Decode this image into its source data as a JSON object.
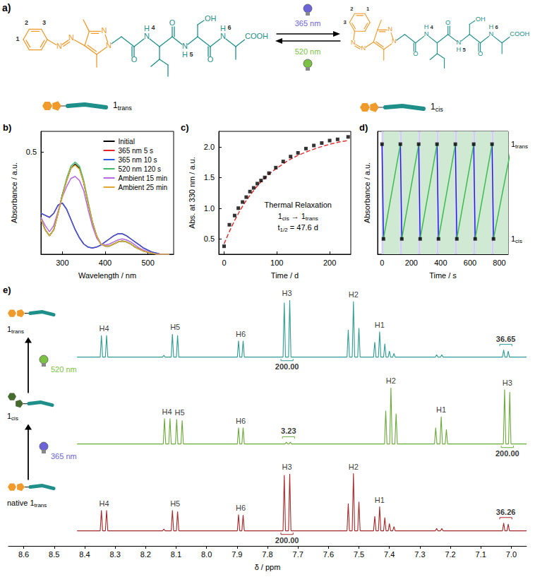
{
  "scheme": {
    "panel": "a)",
    "names": [
      "1trans",
      "1cis"
    ],
    "atoms": [
      "N",
      "N",
      "N",
      "N",
      "O",
      "N",
      "H",
      "O",
      "N",
      "H",
      "OH",
      "O",
      "N",
      "H",
      "COOH"
    ],
    "locants": [
      "1",
      "2",
      "3",
      "4",
      "5",
      "6"
    ],
    "light": [
      {
        "text": "365 nm",
        "color": "#6c63d8"
      },
      {
        "text": "520 nm",
        "color": "#7cc242"
      }
    ]
  },
  "chart_data": [
    {
      "type": "line",
      "panel": "b)",
      "x_label": "Wavelength / nm",
      "y_label": "Absorbance / a.u.",
      "xlim": [
        250,
        560
      ],
      "xticks": [
        300,
        400,
        500
      ],
      "ylim": [
        0,
        0.6
      ],
      "yticks": [
        0.5
      ],
      "legend": "upper right",
      "x": [
        250,
        260,
        270,
        280,
        290,
        300,
        310,
        320,
        330,
        340,
        350,
        360,
        370,
        380,
        390,
        400,
        410,
        420,
        430,
        440,
        450,
        460,
        470,
        480,
        490,
        500,
        510,
        520,
        530,
        540,
        550
      ],
      "series": [
        {
          "name": "Initial",
          "color": "#000000",
          "values": [
            0.17,
            0.12,
            0.09,
            0.12,
            0.2,
            0.29,
            0.36,
            0.42,
            0.44,
            0.42,
            0.35,
            0.25,
            0.16,
            0.09,
            0.05,
            0.04,
            0.04,
            0.05,
            0.06,
            0.065,
            0.06,
            0.05,
            0.035,
            0.025,
            0.015,
            0.01,
            0.005,
            0,
            0,
            0,
            0
          ]
        },
        {
          "name": "365 nm 5 s",
          "color": "#e8222a",
          "values": [
            0.2,
            0.19,
            0.18,
            0.2,
            0.24,
            0.25,
            0.22,
            0.17,
            0.12,
            0.08,
            0.05,
            0.035,
            0.03,
            0.035,
            0.045,
            0.06,
            0.075,
            0.09,
            0.1,
            0.1,
            0.09,
            0.075,
            0.06,
            0.045,
            0.03,
            0.02,
            0.01,
            0.005,
            0,
            0,
            0
          ]
        },
        {
          "name": "365 nm 10 s",
          "color": "#2f5be0",
          "values": [
            0.2,
            0.19,
            0.18,
            0.2,
            0.24,
            0.25,
            0.22,
            0.17,
            0.12,
            0.08,
            0.05,
            0.035,
            0.03,
            0.035,
            0.045,
            0.06,
            0.075,
            0.09,
            0.1,
            0.1,
            0.09,
            0.075,
            0.06,
            0.045,
            0.03,
            0.02,
            0.01,
            0.005,
            0,
            0,
            0
          ]
        },
        {
          "name": "520 nm 120 s",
          "color": "#3fb868",
          "values": [
            0.17,
            0.12,
            0.09,
            0.12,
            0.2,
            0.29,
            0.37,
            0.43,
            0.45,
            0.43,
            0.36,
            0.26,
            0.16,
            0.09,
            0.05,
            0.04,
            0.04,
            0.05,
            0.06,
            0.065,
            0.06,
            0.05,
            0.035,
            0.025,
            0.015,
            0.01,
            0.005,
            0,
            0,
            0,
            0
          ]
        },
        {
          "name": "Ambient 15 min",
          "color": "#b46be0",
          "values": [
            0.18,
            0.14,
            0.11,
            0.14,
            0.21,
            0.28,
            0.33,
            0.37,
            0.38,
            0.36,
            0.31,
            0.22,
            0.14,
            0.08,
            0.05,
            0.045,
            0.05,
            0.06,
            0.07,
            0.075,
            0.07,
            0.06,
            0.045,
            0.03,
            0.02,
            0.012,
            0.006,
            0,
            0,
            0,
            0
          ]
        },
        {
          "name": "Ambient 25 min",
          "color": "#e0a830",
          "values": [
            0.17,
            0.12,
            0.09,
            0.12,
            0.2,
            0.28,
            0.36,
            0.42,
            0.435,
            0.415,
            0.35,
            0.25,
            0.16,
            0.09,
            0.05,
            0.04,
            0.04,
            0.05,
            0.06,
            0.065,
            0.06,
            0.05,
            0.035,
            0.025,
            0.015,
            0.01,
            0.005,
            0,
            0,
            0,
            0
          ]
        }
      ]
    },
    {
      "type": "scatter",
      "panel": "c)",
      "x_label": "Time / d",
      "y_label": "Abs. at 330 nm / a.u.",
      "xlim": [
        -10,
        240
      ],
      "xticks": [
        0,
        100,
        200
      ],
      "ylim": [
        0.25,
        2.25
      ],
      "yticks": [
        0.5,
        {
          "value": 1,
          "label": "1.0"
        },
        1.5,
        {
          "value": 2,
          "label": "2.0"
        }
      ],
      "series": [
        {
          "type": "scatter",
          "color": "#000000",
          "marker": "square",
          "x": [
            0,
            10,
            20,
            27,
            35,
            42,
            49,
            56,
            63,
            70,
            77,
            85,
            98,
            112,
            126,
            140,
            155,
            170,
            185,
            200,
            215,
            235
          ],
          "values": [
            0.38,
            0.73,
            0.88,
            1.0,
            1.1,
            1.18,
            1.27,
            1.33,
            1.4,
            1.45,
            1.5,
            1.57,
            1.66,
            1.76,
            1.84,
            1.9,
            1.97,
            2.02,
            2.06,
            2.1,
            2.12,
            2.16
          ]
        },
        {
          "type": "line",
          "color": "#e03030",
          "line_style": "dashed",
          "x": [
            0,
            10,
            20,
            30,
            40,
            50,
            60,
            70,
            80,
            90,
            100,
            120,
            140,
            160,
            180,
            200,
            220,
            235
          ],
          "values": [
            0.42,
            0.62,
            0.8,
            0.96,
            1.1,
            1.22,
            1.33,
            1.43,
            1.51,
            1.59,
            1.65,
            1.77,
            1.86,
            1.93,
            1.99,
            2.04,
            2.08,
            2.1
          ]
        }
      ],
      "annotations": [
        "Thermal Relaxation",
        "1cis → 1trans",
        "t1/2 = 47.6 d"
      ]
    },
    {
      "type": "line",
      "panel": "d)",
      "x_label": "Time / s",
      "y_label": "Absorbance / a.u.",
      "xlim": [
        -30,
        860
      ],
      "xticks": [
        0,
        200,
        400,
        600,
        800
      ],
      "ylim": [
        0,
        2.4
      ],
      "tick_labels": "x",
      "series": [
        {
          "type": "line",
          "color": "#2020e0",
          "x": [
            0,
            10,
            10,
            125,
            135,
            135,
            250,
            260,
            260,
            375,
            385,
            385,
            500,
            510,
            510,
            625,
            635,
            635,
            750,
            760
          ],
          "values": [
            2.15,
            0.3,
            null,
            2.15,
            0.3,
            null,
            2.15,
            0.3,
            null,
            2.15,
            0.3,
            null,
            2.15,
            0.3,
            null,
            2.15,
            0.3,
            null,
            2.15,
            0.3
          ]
        },
        {
          "type": "line",
          "color": "#3cbc50",
          "x": [
            10,
            125,
            125,
            135,
            250,
            250,
            260,
            375,
            375,
            385,
            500,
            500,
            510,
            625,
            625,
            635,
            750,
            750,
            760,
            885
          ],
          "values": [
            0.3,
            2.15,
            null,
            0.3,
            2.15,
            null,
            0.3,
            2.15,
            null,
            0.3,
            2.15,
            null,
            0.3,
            2.15,
            null,
            0.3,
            2.15,
            null,
            0.3,
            2.15
          ]
        },
        {
          "type": "scatter",
          "color": "#000000",
          "marker": "square",
          "x": [
            0,
            10,
            125,
            135,
            250,
            260,
            375,
            385,
            500,
            510,
            625,
            635,
            750,
            760
          ],
          "values": [
            2.15,
            0.3,
            2.15,
            0.3,
            2.15,
            0.3,
            2.15,
            0.3,
            2.15,
            0.3,
            2.15,
            0.3,
            2.15,
            0.3
          ]
        }
      ],
      "regions": [
        {
          "x": [
            -3,
            12
          ],
          "color": "#d4cdf3"
        },
        {
          "x": [
            12,
            122
          ],
          "color": "#cfe9d3"
        },
        {
          "x": [
            122,
            137
          ],
          "color": "#d4cdf3"
        },
        {
          "x": [
            137,
            247
          ],
          "color": "#cfe9d3"
        },
        {
          "x": [
            247,
            262
          ],
          "color": "#d4cdf3"
        },
        {
          "x": [
            262,
            372
          ],
          "color": "#cfe9d3"
        },
        {
          "x": [
            372,
            387
          ],
          "color": "#d4cdf3"
        },
        {
          "x": [
            387,
            497
          ],
          "color": "#cfe9d3"
        },
        {
          "x": [
            497,
            512
          ],
          "color": "#d4cdf3"
        },
        {
          "x": [
            512,
            622
          ],
          "color": "#cfe9d3"
        },
        {
          "x": [
            622,
            637
          ],
          "color": "#d4cdf3"
        },
        {
          "x": [
            637,
            747
          ],
          "color": "#cfe9d3"
        },
        {
          "x": [
            747,
            762
          ],
          "color": "#d4cdf3"
        },
        {
          "x": [
            762,
            860
          ],
          "color": "#cfe9d3"
        }
      ],
      "annotations": [
        {
          "text": "1trans",
          "y": 2.15
        },
        {
          "text": "1cis",
          "y": 0.3
        }
      ]
    },
    {
      "type": "line",
      "panel": "e)",
      "x_label": "δ / ppm",
      "xlim": [
        8.65,
        6.95
      ],
      "xticks": [
        8.6,
        8.5,
        8.4,
        8.3,
        8.2,
        8.1,
        {
          "value": 8,
          "label": "8.0"
        },
        7.9,
        7.8,
        7.7,
        7.6,
        7.5,
        7.4,
        7.3,
        7.2,
        7.1,
        {
          "value": 7,
          "label": "7.0"
        }
      ],
      "ylim": [
        -0.25,
        1
      ],
      "tick_labels": "x",
      "series": [
        {
          "name": "1trans",
          "color": "#2e9c94",
          "marker": "trans",
          "peaks": [
            [
              8.345,
              0.36
            ],
            [
              8.328,
              0.36
            ],
            [
              8.14,
              0.03
            ],
            [
              8.112,
              0.38
            ],
            [
              8.095,
              0.36
            ],
            [
              7.895,
              0.27
            ],
            [
              7.88,
              0.27
            ],
            [
              7.745,
              0.9
            ],
            [
              7.727,
              0.94
            ],
            [
              7.535,
              0.45
            ],
            [
              7.518,
              0.92
            ],
            [
              7.5,
              0.48
            ],
            [
              7.448,
              0.25
            ],
            [
              7.432,
              0.42
            ],
            [
              7.415,
              0.22
            ],
            [
              7.4,
              0.1
            ],
            [
              7.385,
              0.06
            ],
            [
              7.245,
              0.04
            ],
            [
              7.228,
              0.04
            ],
            [
              7.025,
              0.12
            ],
            [
              7.01,
              0.1
            ]
          ],
          "groups": [
            {
              "label": "H4",
              "ppm": 8.336
            },
            {
              "label": "H5",
              "ppm": 8.103
            },
            {
              "label": "H6",
              "ppm": 7.888
            },
            {
              "label": "H3",
              "ppm": 7.736
            },
            {
              "label": "H2",
              "ppm": 7.518
            },
            {
              "label": "H1",
              "ppm": 7.432
            }
          ],
          "integrals": [
            {
              "label": "200.00",
              "ppm": 7.736
            },
            {
              "label": "36.65",
              "ppm": 7.018
            }
          ]
        },
        {
          "name": "1cis",
          "color": "#6aaa3a",
          "marker": "cis",
          "peaks": [
            [
              8.138,
              0.42
            ],
            [
              8.12,
              0.42
            ],
            [
              8.098,
              0.41
            ],
            [
              8.08,
              0.39
            ],
            [
              7.895,
              0.27
            ],
            [
              7.88,
              0.27
            ],
            [
              7.738,
              0.03
            ],
            [
              7.725,
              0.03
            ],
            [
              7.412,
              0.55
            ],
            [
              7.395,
              0.93
            ],
            [
              7.378,
              0.5
            ],
            [
              7.248,
              0.27
            ],
            [
              7.23,
              0.45
            ],
            [
              7.213,
              0.24
            ],
            [
              7.022,
              0.9
            ],
            [
              7.005,
              0.86
            ]
          ],
          "groups": [
            {
              "label": "H4",
              "ppm": 8.13
            },
            {
              "label": "H5",
              "ppm": 8.088
            },
            {
              "label": "H6",
              "ppm": 7.888
            },
            {
              "label": "H2",
              "ppm": 7.395
            },
            {
              "label": "H1",
              "ppm": 7.23
            },
            {
              "label": "H3",
              "ppm": 7.013
            }
          ],
          "integrals": [
            {
              "label": "3.23",
              "ppm": 7.731
            },
            {
              "label": "200.00",
              "ppm": 7.013
            }
          ]
        },
        {
          "name": "native 1trans",
          "color": "#a8282a",
          "marker": "trans",
          "peaks": [
            [
              8.345,
              0.34
            ],
            [
              8.328,
              0.34
            ],
            [
              8.14,
              0.03
            ],
            [
              8.112,
              0.34
            ],
            [
              8.095,
              0.32
            ],
            [
              7.895,
              0.27
            ],
            [
              7.88,
              0.26
            ],
            [
              7.745,
              0.92
            ],
            [
              7.727,
              0.94
            ],
            [
              7.535,
              0.45
            ],
            [
              7.518,
              0.95
            ],
            [
              7.5,
              0.48
            ],
            [
              7.448,
              0.24
            ],
            [
              7.432,
              0.4
            ],
            [
              7.415,
              0.22
            ],
            [
              7.4,
              0.12
            ],
            [
              7.385,
              0.07
            ],
            [
              7.245,
              0.04
            ],
            [
              7.228,
              0.04
            ],
            [
              7.025,
              0.13
            ],
            [
              7.01,
              0.11
            ]
          ],
          "groups": [
            {
              "label": "H4",
              "ppm": 8.336
            },
            {
              "label": "H5",
              "ppm": 8.103
            },
            {
              "label": "H6",
              "ppm": 7.888
            },
            {
              "label": "H3",
              "ppm": 7.736
            },
            {
              "label": "H2",
              "ppm": 7.518
            },
            {
              "label": "H1",
              "ppm": 7.432
            }
          ],
          "integrals": [
            {
              "label": "200.00",
              "ppm": 7.736
            },
            {
              "label": "36.26",
              "ppm": 7.018
            }
          ]
        }
      ],
      "annotations": [
        {
          "text": "520 nm",
          "color": "#7cc242"
        },
        {
          "text": "365 nm",
          "color": "#6c63d8"
        }
      ]
    }
  ]
}
